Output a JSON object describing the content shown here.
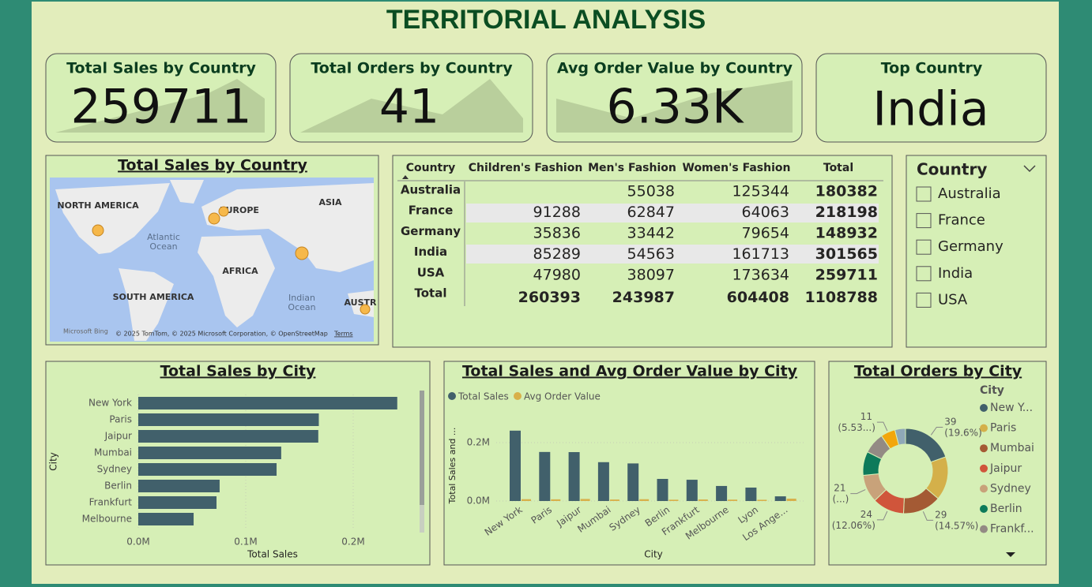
{
  "title": "TERRITORIAL ANALYSIS",
  "cards": [
    {
      "title": "Total Sales by Country",
      "value": 259711
    },
    {
      "title": "Total Orders by Country",
      "value": 41
    },
    {
      "title": "Avg Order Value by Country",
      "value": "6.33K"
    },
    {
      "title": "Top Country",
      "value": "India"
    }
  ],
  "map": {
    "title": "Total Sales by Country",
    "labels": [
      "NORTH AMERICA",
      "EUROPE",
      "ASIA",
      "AFRICA",
      "SOUTH AMERICA",
      "AUSTR"
    ],
    "oceans": [
      "Atlantic",
      "Ocean",
      "Indian",
      "Ocean"
    ],
    "logo": "Microsoft Bing",
    "attribution": "© 2025 TomTom, © 2025 Microsoft Corporation, © OpenStreetMap",
    "terms": "Terms"
  },
  "table": {
    "columns": [
      "Country",
      "Children's Fashion",
      "Men's Fashion",
      "Women's Fashion",
      "Total"
    ],
    "rows": [
      [
        "Australia",
        null,
        55038,
        125344,
        180382
      ],
      [
        "France",
        91288,
        62847,
        64063,
        218198
      ],
      [
        "Germany",
        35836,
        33442,
        79654,
        148932
      ],
      [
        "India",
        85289,
        54563,
        161713,
        301565
      ],
      [
        "USA",
        47980,
        38097,
        173634,
        259711
      ],
      [
        "Total",
        260393,
        243987,
        604408,
        1108788
      ]
    ]
  },
  "slicer": {
    "title": "Country",
    "options": [
      "Australia",
      "France",
      "Germany",
      "India",
      "USA"
    ]
  },
  "chart_data": [
    {
      "type": "hbar",
      "title": "Total Sales by City",
      "categories": [
        "New York",
        "Paris",
        "Jaipur",
        "Mumbai",
        "Sydney",
        "Berlin",
        "Frankfurt",
        "Melbourne"
      ],
      "values": [
        241000,
        168000,
        167500,
        133000,
        128700,
        75700,
        72800,
        51500
      ],
      "color": "#41606b",
      "xlim": [
        0,
        260000
      ],
      "xticks": [
        {
          "value": 0,
          "label": "0.0M"
        },
        {
          "value": 100000,
          "label": "0.1M"
        },
        {
          "value": 200000,
          "label": "0.2M"
        }
      ],
      "grid": true,
      "x_label": "Total Sales",
      "y_label": "City"
    },
    {
      "type": "column",
      "title": "Total Sales and Avg Order Value by City",
      "categories": [
        "New York",
        "Paris",
        "Jaipur",
        "Mumbai",
        "Sydney",
        "Berlin",
        "Frankfurt",
        "Melbourne",
        "Lyon",
        "Los Ange..."
      ],
      "series": [
        {
          "name": "Total Sales",
          "color": "#41606b",
          "values": [
            241000,
            168000,
            167500,
            133000,
            128700,
            75700,
            72800,
            51500,
            46000,
            16000
          ]
        },
        {
          "name": "Avg Order Value",
          "color": "#d8b04a",
          "values": [
            6180,
            5790,
            6980,
            5100,
            6130,
            4450,
            5200,
            4680,
            4180,
            8000
          ]
        }
      ],
      "ylim": [
        0,
        300000
      ],
      "yticks": [
        {
          "value": 0,
          "label": "0.0M"
        },
        {
          "value": 200000,
          "label": "0.2M"
        }
      ],
      "grid": true,
      "x_label": "City",
      "y_label": "Total Sales and ..."
    },
    {
      "type": "donut",
      "title": "Total Orders by City",
      "legend_title": "City",
      "categories": [
        "New Y...",
        "Paris",
        "Mumbai",
        "Jaipur",
        "Sydney",
        "Berlin",
        "Frankf...",
        null,
        null
      ],
      "values": [
        39,
        33,
        29,
        24,
        21,
        18,
        16,
        11,
        8
      ],
      "value_labels": [
        "39 (19.6%)",
        null,
        "29 (14.57%)",
        "24 (12.06%)",
        "21 (...)",
        null,
        null,
        "11 (5.53...)",
        null
      ],
      "colors": [
        "#41606b",
        "#d4b04a",
        "#a45a34",
        "#d0553b",
        "#c8a27a",
        "#0d7a5a",
        "#938a84",
        "#f2a60c",
        "#8fa8b8"
      ]
    }
  ]
}
